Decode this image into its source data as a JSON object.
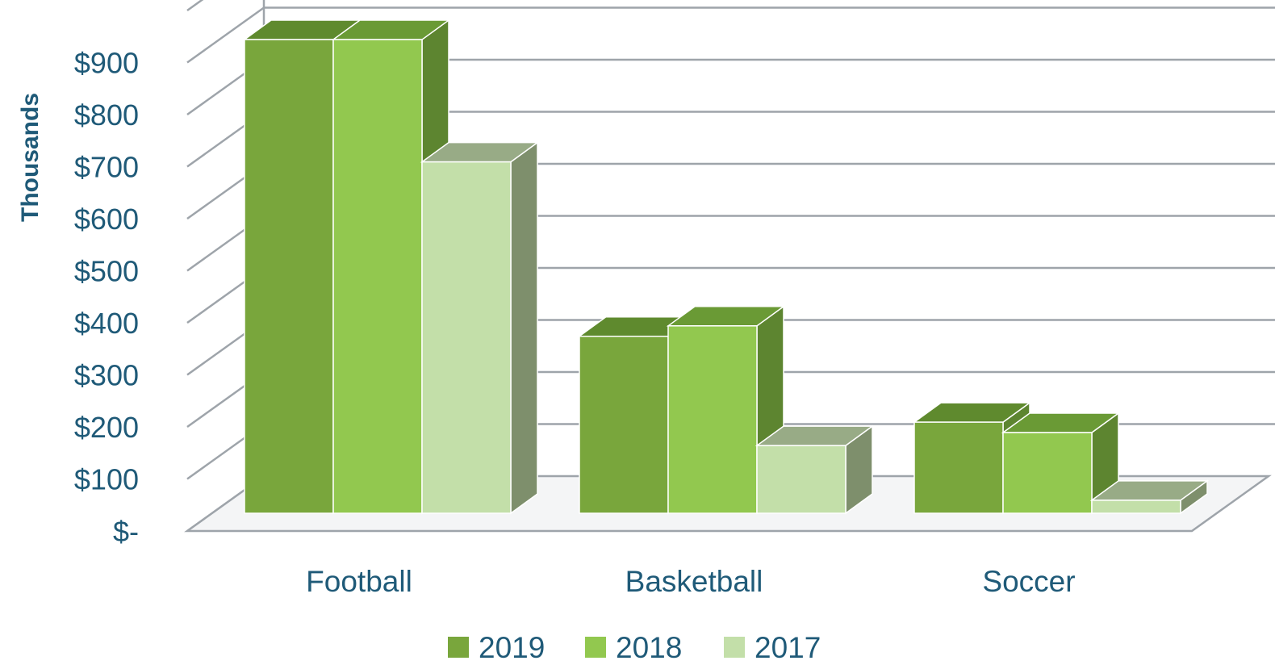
{
  "chart_data": {
    "type": "bar",
    "style": "3d-clustered-column",
    "categories": [
      "Football",
      "Basketball",
      "Soccer"
    ],
    "series": [
      {
        "name": "2019",
        "values": [
          910,
          340,
          175
        ],
        "color": "#79a63c"
      },
      {
        "name": "2018",
        "values": [
          910,
          360,
          155
        ],
        "color": "#92c84f"
      },
      {
        "name": "2017",
        "values": [
          675,
          130,
          25
        ],
        "color": "#c3dfa9"
      }
    ],
    "ylabel": "Thousands",
    "xlabel": "",
    "y_ticks": [
      "$-",
      "$100",
      "$200",
      "$300",
      "$400",
      "$500",
      "$600",
      "$700",
      "$800",
      "$900"
    ],
    "ylim": [
      0,
      1000
    ],
    "grid": true,
    "legend_position": "bottom"
  },
  "colors": {
    "text": "#1f5a78",
    "gridline": "#9ea4aa"
  }
}
